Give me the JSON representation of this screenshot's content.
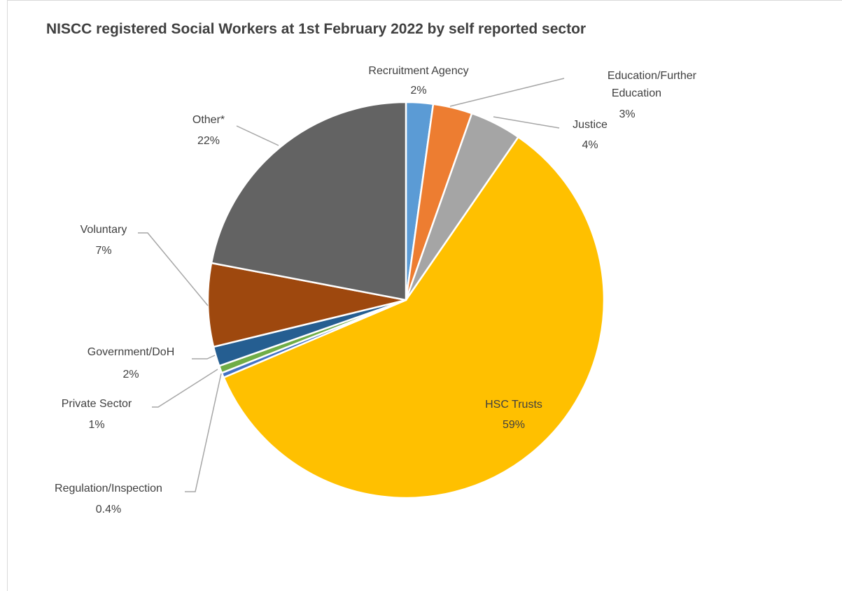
{
  "chart_data": {
    "type": "pie",
    "title": "NISCC registered Social Workers at 1st February 2022 by self reported sector",
    "slices": [
      {
        "name": "Recruitment Agency",
        "value": 2.2,
        "label": "2%",
        "color": "#5b9bd5"
      },
      {
        "name": "Education/Further Education",
        "value": 3.2,
        "label": "3%",
        "color": "#ed7d31"
      },
      {
        "name": "Justice",
        "value": 4.2,
        "label": "4%",
        "color": "#a5a5a5"
      },
      {
        "name": "HSC Trusts",
        "value": 59.0,
        "label": "59%",
        "color": "#ffc000"
      },
      {
        "name": "Regulation/Inspection",
        "value": 0.4,
        "label": "0.4%",
        "color": "#4472c4"
      },
      {
        "name": "Private Sector",
        "value": 0.6,
        "label": "1%",
        "color": "#70ad47"
      },
      {
        "name": "Government/DoH",
        "value": 1.6,
        "label": "2%",
        "color": "#255e91"
      },
      {
        "name": "Voluntary",
        "value": 6.8,
        "label": "7%",
        "color": "#9e480e"
      },
      {
        "name": "Other*",
        "value": 22.0,
        "label": "22%",
        "color": "#636363"
      }
    ],
    "start_angle": "12 o'clock",
    "direction": "clockwise",
    "legend": "none (data labels with leader lines)"
  }
}
